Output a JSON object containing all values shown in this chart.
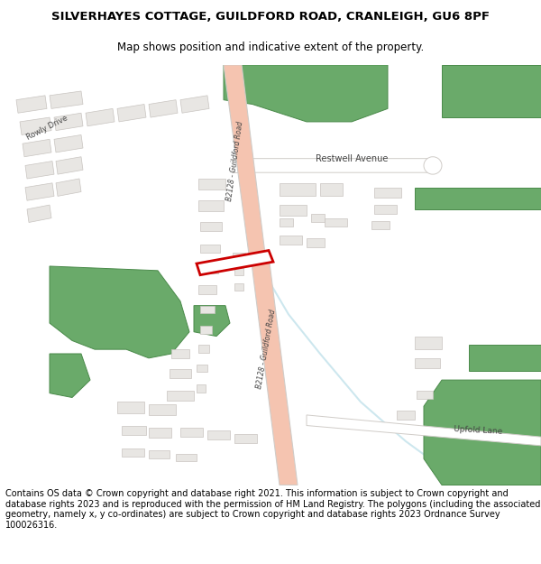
{
  "title_line1": "SILVERHAYES COTTAGE, GUILDFORD ROAD, CRANLEIGH, GU6 8PF",
  "title_line2": "Map shows position and indicative extent of the property.",
  "footer": "Contains OS data © Crown copyright and database right 2021. This information is subject to Crown copyright and database rights 2023 and is reproduced with the permission of HM Land Registry. The polygons (including the associated geometry, namely x, y co-ordinates) are subject to Crown copyright and database rights 2023 Ordnance Survey 100026316.",
  "bg_color": "#ffffff",
  "road_color_main": "#f5c4b0",
  "road_color_secondary": "#ffffff",
  "road_outline": "#d0ccc8",
  "building_color": "#e8e6e3",
  "building_outline": "#c8c4c0",
  "green_color": "#6aaa6a",
  "green_outline": "#4a8a4a",
  "highlight_fill": "#ffffff",
  "highlight_outline": "#cc0000",
  "title_fontsize": 9.5,
  "subtitle_fontsize": 8.5,
  "footer_fontsize": 7.0,
  "road_label_color": "#444444",
  "water_color": "#b8dde8"
}
